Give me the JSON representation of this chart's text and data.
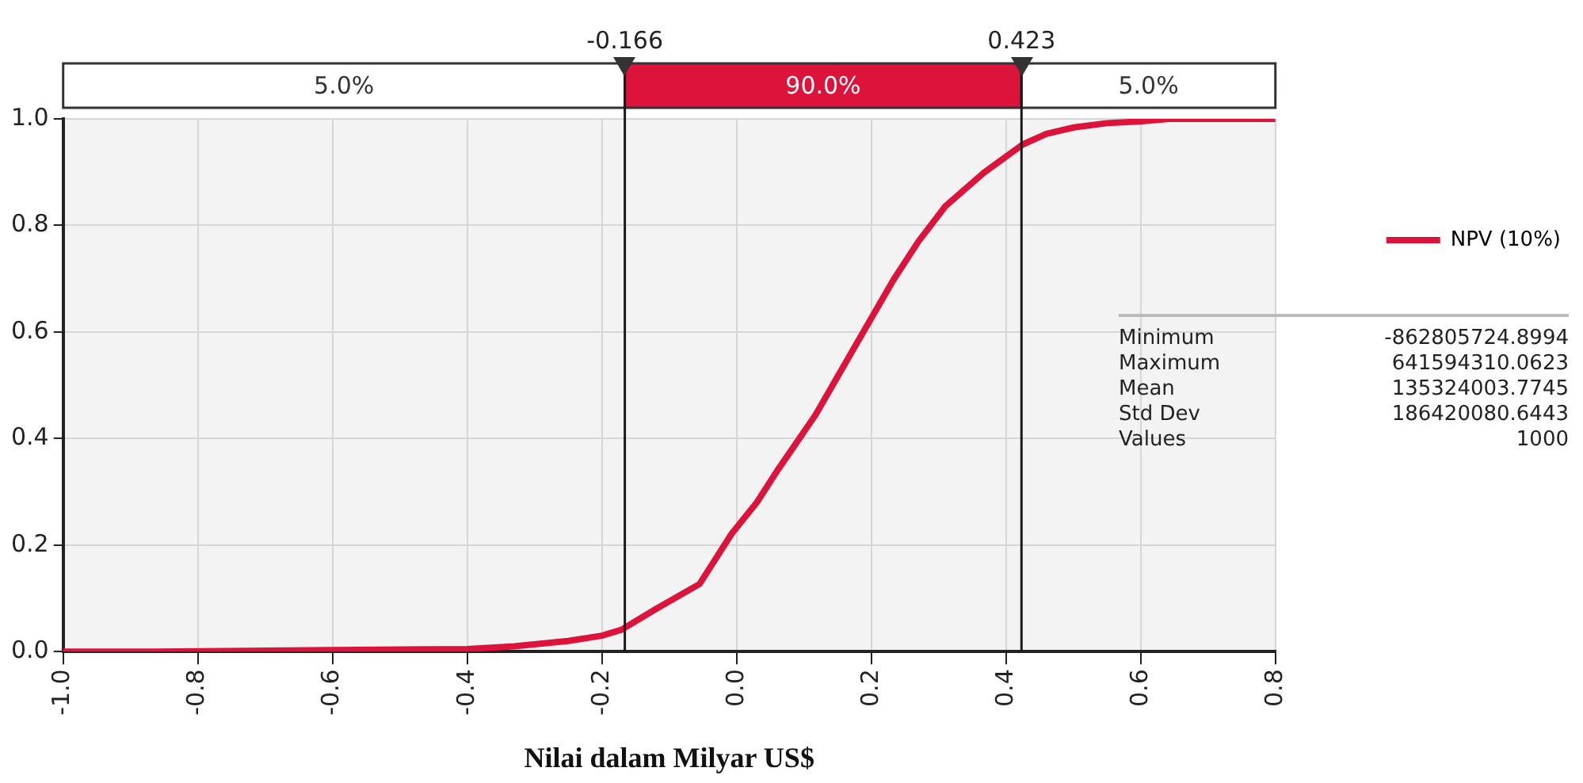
{
  "chart_data": {
    "type": "line",
    "xlabel": "Nilai dalam Milyar US$",
    "series": [
      {
        "name": "NPV (10%)",
        "color": "#dc143c",
        "x": [
          -1.0,
          -0.863,
          -0.6,
          -0.4,
          -0.33,
          -0.25,
          -0.2,
          -0.171,
          -0.12,
          -0.055,
          -0.007,
          0.03,
          0.06,
          0.117,
          0.185,
          0.233,
          0.27,
          0.31,
          0.367,
          0.425,
          0.46,
          0.501,
          0.55,
          0.598,
          0.642,
          0.8
        ],
        "values": [
          0,
          0,
          0.003,
          0.005,
          0.01,
          0.02,
          0.03,
          0.041,
          0.08,
          0.127,
          0.222,
          0.28,
          0.339,
          0.444,
          0.593,
          0.698,
          0.77,
          0.836,
          0.899,
          0.952,
          0.972,
          0.984,
          0.992,
          0.995,
          1.0,
          1.0
        ]
      }
    ],
    "xlim": [
      -1.0,
      0.8
    ],
    "ylim": [
      0,
      1.0
    ],
    "xticks": [
      {
        "value": -1.0,
        "label": "-1.0"
      },
      -0.8,
      -0.6,
      -0.4,
      -0.2,
      {
        "value": 0,
        "label": "0.0"
      },
      0.2,
      0.4,
      0.6,
      0.8
    ],
    "yticks": [
      {
        "value": 0,
        "label": "0.0"
      },
      0.2,
      0.4,
      0.6,
      0.8,
      {
        "value": 1.0,
        "label": "1.0"
      }
    ],
    "ref_lines": [
      {
        "axis": "x",
        "value": -0.166,
        "label": "-0.166",
        "color": "#1a1a1a"
      },
      {
        "axis": "x",
        "value": 0.423,
        "label": "0.423",
        "color": "#1a1a1a"
      }
    ],
    "annotations": [
      "5.0%",
      "90.0%",
      "5.0%",
      "Minimum",
      "-862805724.8994",
      "Maximum",
      "641594310.0623",
      "Mean",
      "135324003.7745",
      "Std Dev",
      "186420080.6443",
      "Values",
      "1000"
    ],
    "grid": true,
    "legend": "right",
    "marker": "none",
    "line_style": "solid"
  }
}
